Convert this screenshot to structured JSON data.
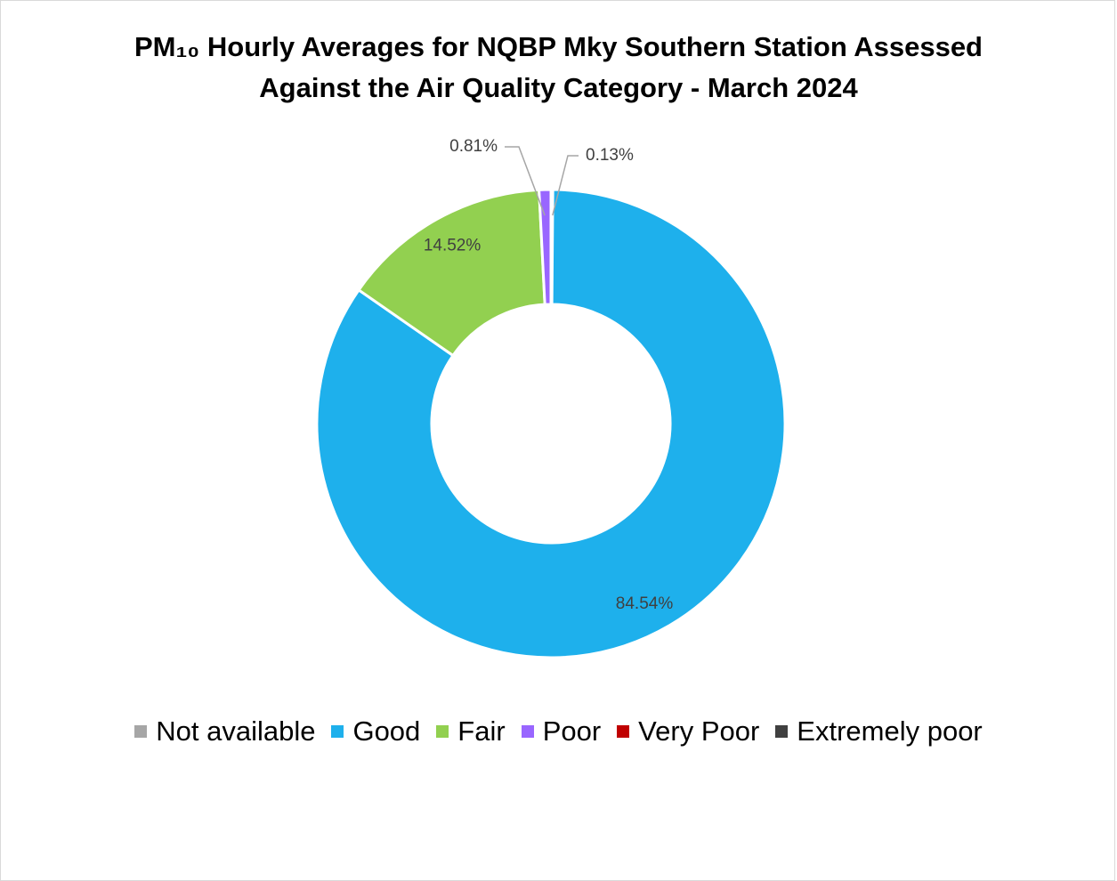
{
  "chart_data": {
    "type": "pie",
    "variant": "donut",
    "title_lines": [
      "PM₁₀ Hourly Averages for NQBP Mky Southern Station Assessed",
      "Against the Air Quality Category - March 2024"
    ],
    "legend_position": "bottom",
    "categories": [
      "Not available",
      "Good",
      "Fair",
      "Poor",
      "Very Poor",
      "Extremely poor"
    ],
    "values": [
      0.13,
      84.54,
      14.52,
      0.81,
      0,
      0
    ],
    "labels": [
      "0.13%",
      "84.54%",
      "14.52%",
      "0.81%",
      "",
      ""
    ],
    "colors": [
      "#a6a6a6",
      "#1eb0ec",
      "#92d050",
      "#9966ff",
      "#c00000",
      "#404040"
    ]
  }
}
